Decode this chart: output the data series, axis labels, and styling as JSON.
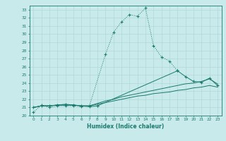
{
  "xlabel": "Humidex (Indice chaleur)",
  "bg_color": "#c8eaea",
  "grid_color": "#b0d8d8",
  "line_color": "#1a7a6e",
  "xlim": [
    -0.5,
    23.5
  ],
  "ylim": [
    20,
    33.5
  ],
  "xticks": [
    0,
    1,
    2,
    3,
    4,
    5,
    6,
    7,
    8,
    9,
    10,
    11,
    12,
    13,
    14,
    15,
    16,
    17,
    18,
    19,
    20,
    21,
    22,
    23
  ],
  "yticks": [
    20,
    21,
    22,
    23,
    24,
    25,
    26,
    27,
    28,
    29,
    30,
    31,
    32,
    33
  ],
  "s1_x": [
    0,
    1,
    2,
    3,
    4,
    5,
    6,
    7,
    9,
    10,
    11,
    12,
    13,
    14,
    15,
    16,
    17,
    18
  ],
  "s1_y": [
    20.4,
    21.3,
    21.0,
    21.2,
    21.2,
    21.2,
    21.1,
    21.2,
    27.5,
    30.2,
    31.5,
    32.4,
    32.2,
    33.2,
    28.6,
    27.2,
    26.7,
    25.5
  ],
  "s2_x": [
    0,
    1,
    2,
    3,
    4,
    5,
    6,
    7,
    8,
    18,
    19,
    20,
    21,
    22,
    23
  ],
  "s2_y": [
    21.0,
    21.2,
    21.2,
    21.3,
    21.4,
    21.3,
    21.2,
    21.1,
    21.2,
    25.5,
    24.8,
    24.2,
    24.1,
    24.6,
    23.7
  ],
  "s3_x": [
    0,
    1,
    2,
    3,
    4,
    5,
    6,
    7,
    8,
    9,
    10,
    11,
    12,
    13,
    14,
    15,
    16,
    17,
    18,
    19,
    20,
    21,
    22,
    23
  ],
  "s3_y": [
    21.0,
    21.2,
    21.2,
    21.3,
    21.3,
    21.3,
    21.2,
    21.2,
    21.5,
    21.8,
    22.0,
    22.3,
    22.5,
    22.7,
    22.9,
    23.1,
    23.3,
    23.5,
    23.7,
    23.9,
    24.0,
    24.2,
    24.5,
    23.9
  ],
  "s4_x": [
    0,
    1,
    2,
    3,
    4,
    5,
    6,
    7,
    8,
    9,
    10,
    11,
    12,
    13,
    14,
    15,
    16,
    17,
    18,
    19,
    20,
    21,
    22,
    23
  ],
  "s4_y": [
    21.0,
    21.2,
    21.2,
    21.3,
    21.3,
    21.3,
    21.2,
    21.2,
    21.4,
    21.6,
    21.8,
    22.0,
    22.2,
    22.4,
    22.5,
    22.7,
    22.8,
    22.9,
    23.1,
    23.2,
    23.4,
    23.5,
    23.7,
    23.5
  ]
}
